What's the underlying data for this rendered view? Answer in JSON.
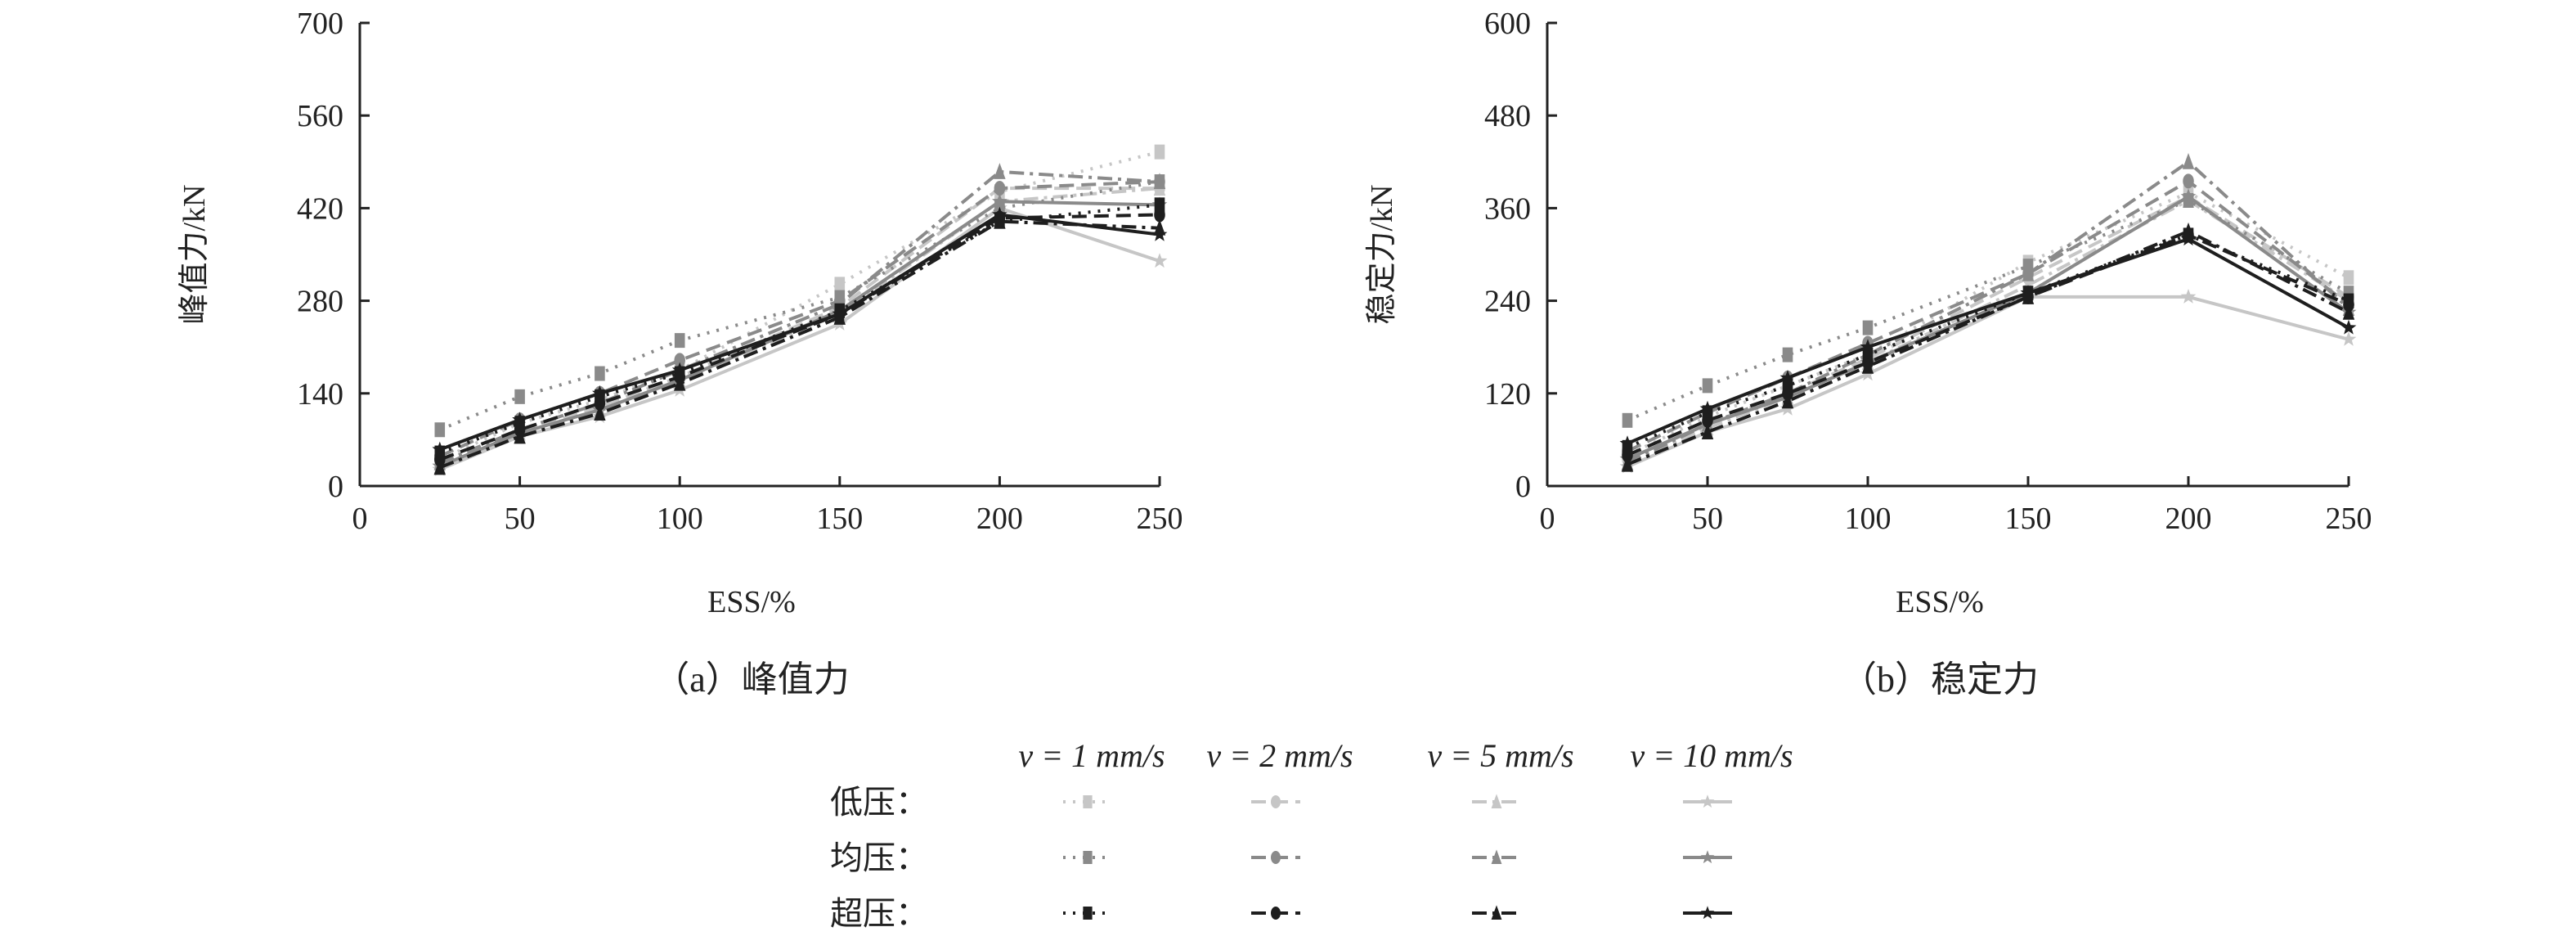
{
  "colors": {
    "低压": "#c6c6c6",
    "均压": "#8a8a8a",
    "超压": "#1e1e1e"
  },
  "legend": {
    "speeds": [
      {
        "label": "v = 1 mm/s",
        "marker": "square",
        "dash": "dotted"
      },
      {
        "label": "v = 2 mm/s",
        "marker": "circle",
        "dash": "dashed"
      },
      {
        "label": "v = 5 mm/s",
        "marker": "triangle",
        "dash": "dash-dot"
      },
      {
        "label": "v = 10 mm/s",
        "marker": "star",
        "dash": "solid"
      }
    ],
    "pressures": [
      "低压：",
      "均压：",
      "超压："
    ]
  },
  "chart_data": [
    {
      "type": "line",
      "caption": "（a）峰值力",
      "xlabel": "ESS/%",
      "ylabel": "峰值力/kN",
      "xlim": [
        0,
        250
      ],
      "ylim": [
        0,
        700
      ],
      "xticks": [
        0,
        50,
        100,
        150,
        200,
        250
      ],
      "yticks": [
        0,
        140,
        280,
        420,
        560,
        700
      ],
      "grid": false,
      "x": [
        25,
        50,
        75,
        100,
        150,
        200,
        250
      ],
      "series": [
        {
          "pressure": "低压",
          "speed": 0,
          "values": [
            40,
            95,
            130,
            175,
            305,
            445,
            505
          ]
        },
        {
          "pressure": "低压",
          "speed": 1,
          "values": [
            30,
            80,
            120,
            165,
            270,
            450,
            450
          ]
        },
        {
          "pressure": "低压",
          "speed": 2,
          "values": [
            30,
            80,
            115,
            160,
            260,
            430,
            450
          ]
        },
        {
          "pressure": "低压",
          "speed": 3,
          "values": [
            25,
            75,
            105,
            145,
            245,
            420,
            340
          ]
        },
        {
          "pressure": "均压",
          "speed": 0,
          "values": [
            85,
            135,
            170,
            220,
            285,
            420,
            460
          ]
        },
        {
          "pressure": "均压",
          "speed": 1,
          "values": [
            45,
            100,
            140,
            190,
            280,
            450,
            460
          ]
        },
        {
          "pressure": "均压",
          "speed": 2,
          "values": [
            35,
            85,
            125,
            175,
            275,
            475,
            460
          ]
        },
        {
          "pressure": "均压",
          "speed": 3,
          "values": [
            30,
            80,
            115,
            160,
            265,
            430,
            425
          ]
        },
        {
          "pressure": "超压",
          "speed": 0,
          "values": [
            50,
            95,
            135,
            170,
            265,
            400,
            425
          ]
        },
        {
          "pressure": "超压",
          "speed": 1,
          "values": [
            40,
            85,
            125,
            165,
            260,
            405,
            410
          ]
        },
        {
          "pressure": "超压",
          "speed": 2,
          "values": [
            28,
            75,
            110,
            155,
            255,
            400,
            390
          ]
        },
        {
          "pressure": "超压",
          "speed": 3,
          "values": [
            55,
            100,
            140,
            175,
            260,
            410,
            380
          ]
        }
      ]
    },
    {
      "type": "line",
      "caption": "（b）稳定力",
      "xlabel": "ESS/%",
      "ylabel": "稳定力/kN",
      "xlim": [
        0,
        250
      ],
      "ylim": [
        0,
        600
      ],
      "xticks": [
        0,
        50,
        100,
        150,
        200,
        250
      ],
      "yticks": [
        0,
        120,
        240,
        360,
        480,
        600
      ],
      "grid": false,
      "x": [
        25,
        50,
        75,
        100,
        150,
        200,
        250
      ],
      "series": [
        {
          "pressure": "低压",
          "speed": 0,
          "values": [
            40,
            90,
            130,
            170,
            290,
            380,
            270
          ]
        },
        {
          "pressure": "低压",
          "speed": 1,
          "values": [
            35,
            80,
            120,
            165,
            270,
            375,
            245
          ]
        },
        {
          "pressure": "低压",
          "speed": 2,
          "values": [
            30,
            75,
            115,
            160,
            260,
            370,
            240
          ]
        },
        {
          "pressure": "低压",
          "speed": 3,
          "values": [
            25,
            70,
            100,
            145,
            245,
            245,
            190
          ]
        },
        {
          "pressure": "均压",
          "speed": 0,
          "values": [
            85,
            130,
            170,
            205,
            285,
            370,
            250
          ]
        },
        {
          "pressure": "均压",
          "speed": 1,
          "values": [
            45,
            95,
            140,
            185,
            275,
            395,
            235
          ]
        },
        {
          "pressure": "均压",
          "speed": 2,
          "values": [
            30,
            80,
            120,
            170,
            275,
            420,
            230
          ]
        },
        {
          "pressure": "均压",
          "speed": 3,
          "values": [
            35,
            80,
            115,
            160,
            250,
            375,
            225
          ]
        },
        {
          "pressure": "超压",
          "speed": 0,
          "values": [
            50,
            95,
            130,
            170,
            250,
            325,
            240
          ]
        },
        {
          "pressure": "超压",
          "speed": 1,
          "values": [
            40,
            85,
            120,
            160,
            245,
            325,
            235
          ]
        },
        {
          "pressure": "超压",
          "speed": 2,
          "values": [
            28,
            70,
            110,
            155,
            245,
            330,
            225
          ]
        },
        {
          "pressure": "超压",
          "speed": 3,
          "values": [
            55,
            100,
            140,
            180,
            250,
            320,
            205
          ]
        }
      ]
    }
  ]
}
